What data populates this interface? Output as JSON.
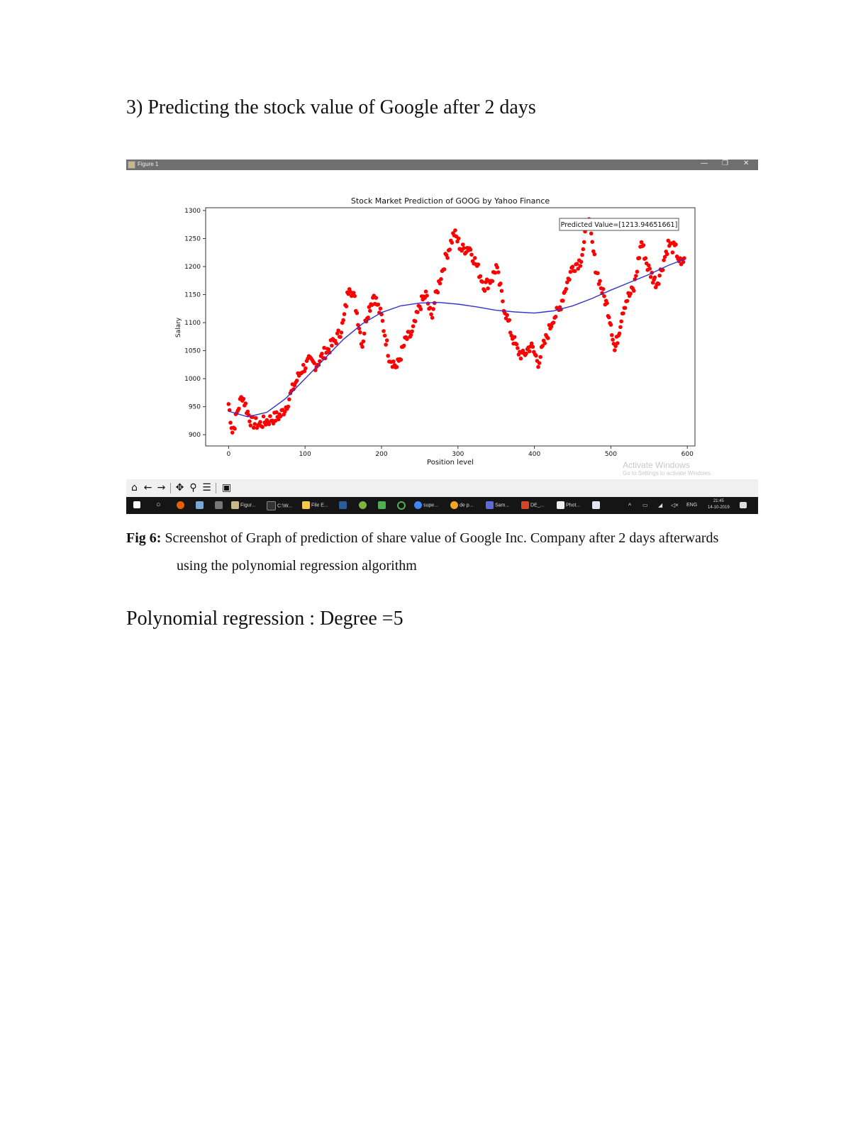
{
  "heading": "3) Predicting the stock value of Google after 2 days",
  "window": {
    "title": "Figure 1",
    "minimize_glyph": "—",
    "restore_glyph": "❐",
    "close_glyph": "✕"
  },
  "toolbar": {
    "home_icon": "home-icon",
    "back_icon": "back-arrow-icon",
    "forward_icon": "forward-arrow-icon",
    "pan_icon": "pan-icon",
    "zoom_icon": "zoom-icon",
    "configure_icon": "configure-subplots-icon",
    "save_icon": "save-icon"
  },
  "watermark": {
    "line1": "Activate Windows",
    "line2": "Go to Settings to activate Windows."
  },
  "taskbar": {
    "items": [
      "Figur...",
      "C:\\W...",
      "File E...",
      "supe...",
      "de p...",
      "Sam...",
      "DE_...",
      "Phot..."
    ],
    "language": "ENG",
    "time": "21:45",
    "date": "14-10-2019",
    "colors": {
      "start": "#ffffff",
      "firefox": "#e66000",
      "chrome": "#4caf50",
      "search": "#f5a623",
      "ppt": "#d24726"
    }
  },
  "chart_data": {
    "type": "scatter",
    "title": "Stock Market Prediction of GOOG by Yahoo Finance",
    "xlabel": "Position level",
    "ylabel": "Salary",
    "xlim": [
      -30,
      610
    ],
    "ylim": [
      880,
      1305
    ],
    "xticks": [
      0,
      100,
      200,
      300,
      400,
      500,
      600
    ],
    "yticks": [
      900,
      950,
      1000,
      1050,
      1100,
      1150,
      1200,
      1250,
      1300
    ],
    "annotation": "Predicted Value=[1213.94651661]",
    "grid": false,
    "colors": {
      "points": "#ff0000",
      "fit": "#3333cc"
    },
    "scatter_keypoints": {
      "x": [
        0,
        5,
        8,
        12,
        18,
        25,
        30,
        40,
        50,
        60,
        68,
        75,
        85,
        95,
        105,
        115,
        125,
        135,
        145,
        150,
        158,
        165,
        175,
        180,
        185,
        190,
        200,
        210,
        220,
        232,
        240,
        250,
        258,
        265,
        275,
        285,
        295,
        305,
        315,
        325,
        335,
        345,
        350,
        360,
        370,
        378,
        385,
        395,
        405,
        415,
        425,
        432,
        440,
        450,
        460,
        465,
        470,
        480,
        490,
        495,
        500,
        505,
        510,
        515,
        520,
        530,
        540,
        548,
        555,
        560,
        565,
        575,
        585,
        592,
        596
      ],
      "y": [
        955,
        905,
        920,
        945,
        970,
        940,
        922,
        918,
        925,
        930,
        935,
        950,
        985,
        1015,
        1030,
        1025,
        1045,
        1060,
        1080,
        1100,
        1170,
        1140,
        1060,
        1110,
        1130,
        1150,
        1110,
        1040,
        1020,
        1070,
        1080,
        1130,
        1150,
        1110,
        1170,
        1220,
        1260,
        1230,
        1235,
        1200,
        1165,
        1180,
        1200,
        1130,
        1080,
        1050,
        1040,
        1060,
        1030,
        1070,
        1110,
        1120,
        1160,
        1200,
        1210,
        1240,
        1290,
        1200,
        1150,
        1130,
        1100,
        1050,
        1080,
        1120,
        1140,
        1160,
        1245,
        1200,
        1180,
        1170,
        1190,
        1240,
        1230,
        1200,
        1215
      ]
    },
    "fit_curve": {
      "x": [
        0,
        25,
        50,
        75,
        100,
        125,
        150,
        175,
        200,
        225,
        250,
        275,
        300,
        325,
        350,
        375,
        400,
        425,
        450,
        475,
        500,
        525,
        550,
        575,
        596
      ],
      "y": [
        942,
        932,
        940,
        965,
        1000,
        1035,
        1070,
        1098,
        1118,
        1130,
        1135,
        1136,
        1133,
        1128,
        1122,
        1119,
        1117,
        1121,
        1130,
        1143,
        1158,
        1172,
        1186,
        1202,
        1213
      ]
    }
  },
  "caption": {
    "label": "Fig 6:",
    "line1": " Screenshot of Graph of prediction of share value of Google Inc. Company after 2 days afterwards",
    "line2": "using the polynomial regression algorithm"
  },
  "degree_text": "Polynomial regression : Degree =5"
}
